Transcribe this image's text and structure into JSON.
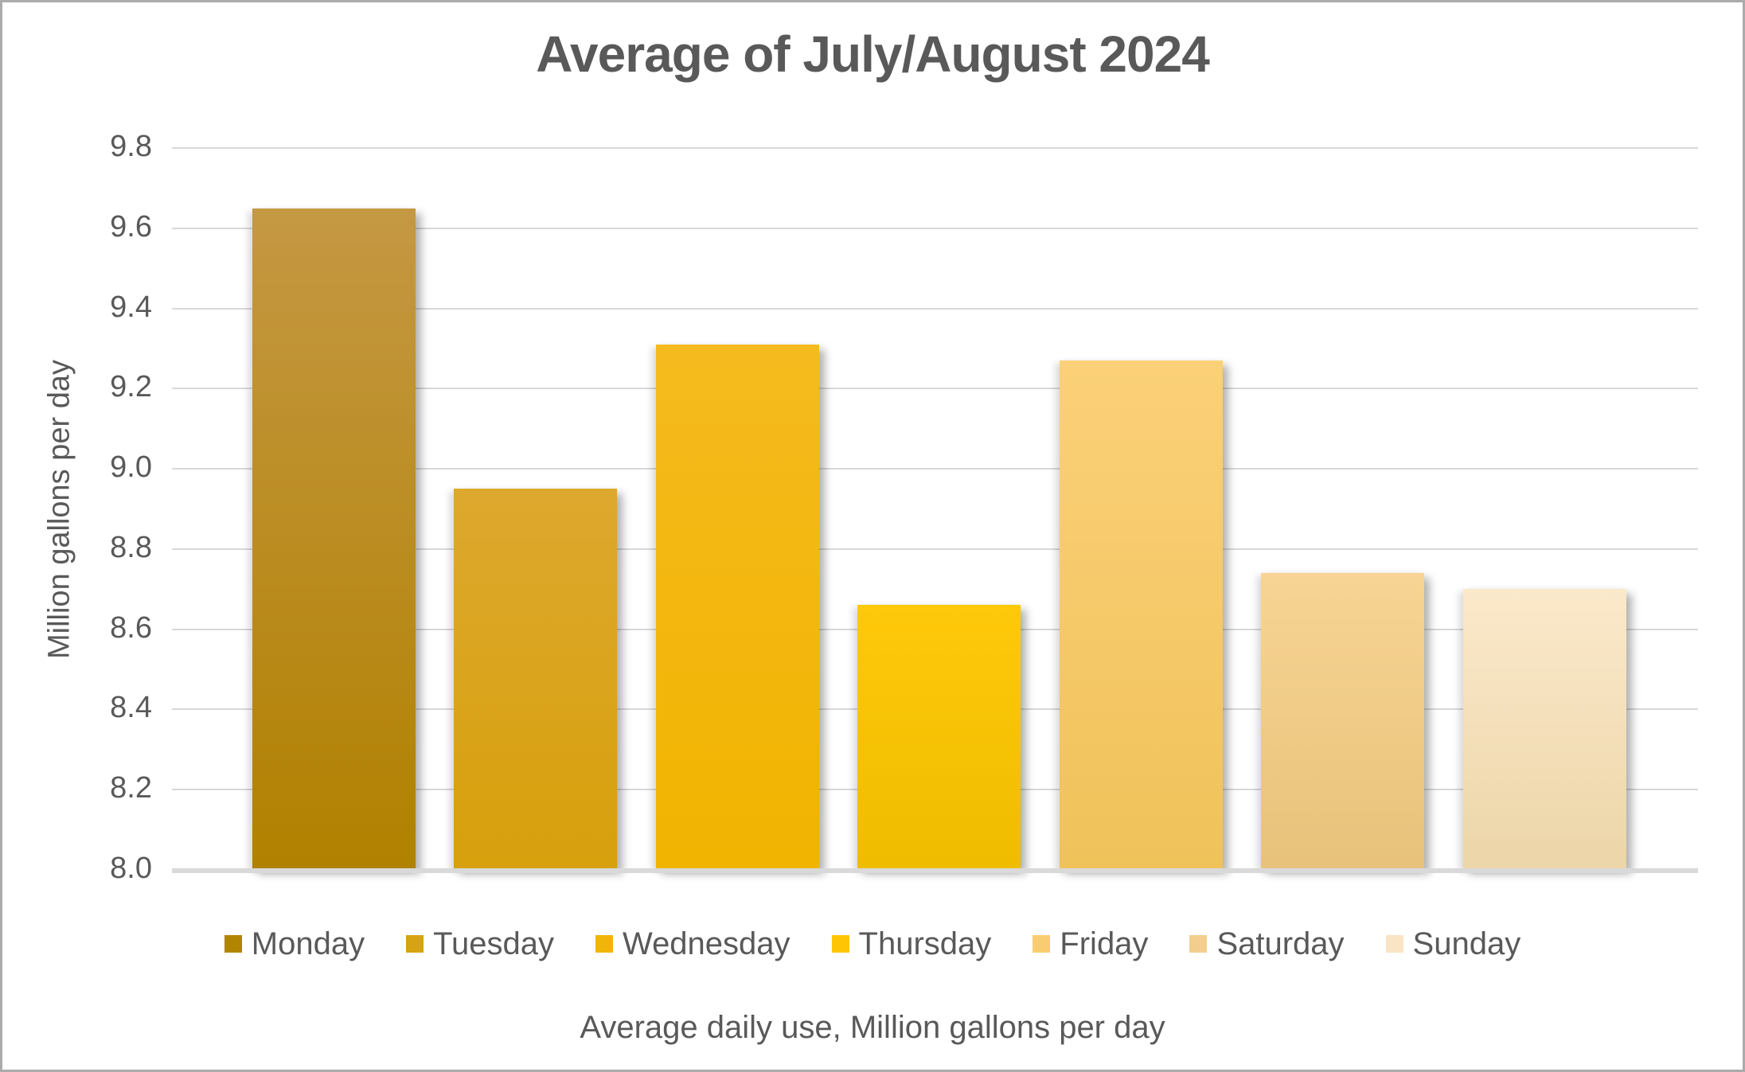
{
  "chart_data": {
    "type": "bar",
    "title": "Average of July/August 2024",
    "xlabel": "Average daily use, Million gallons per day",
    "ylabel": "Million gallons per day",
    "categories": [
      "Monday",
      "Tuesday",
      "Wednesday",
      "Thursday",
      "Friday",
      "Saturday",
      "Sunday"
    ],
    "values": [
      9.65,
      8.95,
      9.31,
      8.66,
      9.27,
      8.74,
      8.7
    ],
    "ylim": [
      8.0,
      9.8
    ],
    "ytick_step": 0.2,
    "ytick_labels": [
      "8.0",
      "8.2",
      "8.4",
      "8.6",
      "8.8",
      "9.0",
      "9.2",
      "9.4",
      "9.6",
      "9.8"
    ],
    "grid": true,
    "legend_position": "bottom",
    "series_colors": [
      {
        "name": "Monday",
        "top": "#C59843",
        "bottom": "#B18100",
        "legend": "#B28500"
      },
      {
        "name": "Tuesday",
        "top": "#DDA82E",
        "bottom": "#D7A00C",
        "legend": "#D6A312"
      },
      {
        "name": "Wednesday",
        "top": "#F5BA1E",
        "bottom": "#F1B400",
        "legend": "#F1B50A"
      },
      {
        "name": "Thursday",
        "top": "#FFC90A",
        "bottom": "#EFBC00",
        "legend": "#FDC503"
      },
      {
        "name": "Friday",
        "top": "#FBD078",
        "bottom": "#F0C25A",
        "legend": "#F9CD6F"
      },
      {
        "name": "Saturday",
        "top": "#F8D494",
        "bottom": "#E7C27A",
        "legend": "#F3CE8E"
      },
      {
        "name": "Sunday",
        "top": "#FBE9CB",
        "bottom": "#ECD5A8",
        "legend": "#F9E4C3"
      }
    ]
  },
  "colors": {
    "text": "#595959",
    "gridline": "#D9D9D9",
    "axis_line": "#D9D9D9",
    "frame_border": "#ABABAB",
    "background": "#FFFFFF"
  }
}
